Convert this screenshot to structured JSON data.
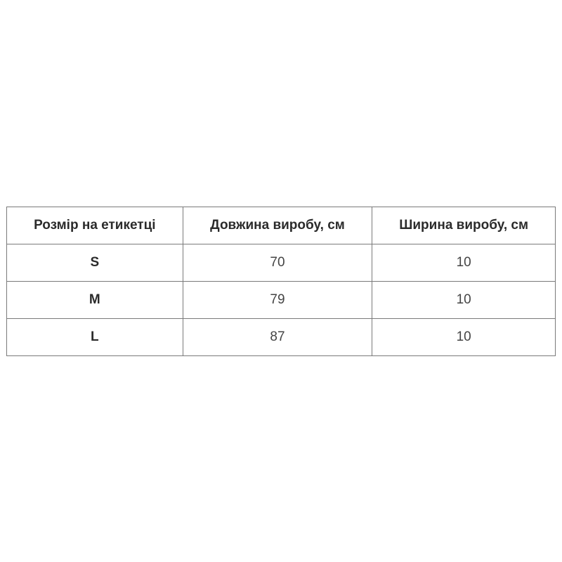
{
  "table": {
    "headers": [
      "Розмір на етикетці",
      "Довжина виробу, см",
      "Ширина виробу, см"
    ],
    "rows": [
      [
        "S",
        "70",
        "10"
      ],
      [
        "M",
        "79",
        "10"
      ],
      [
        "L",
        "87",
        "10"
      ]
    ]
  }
}
